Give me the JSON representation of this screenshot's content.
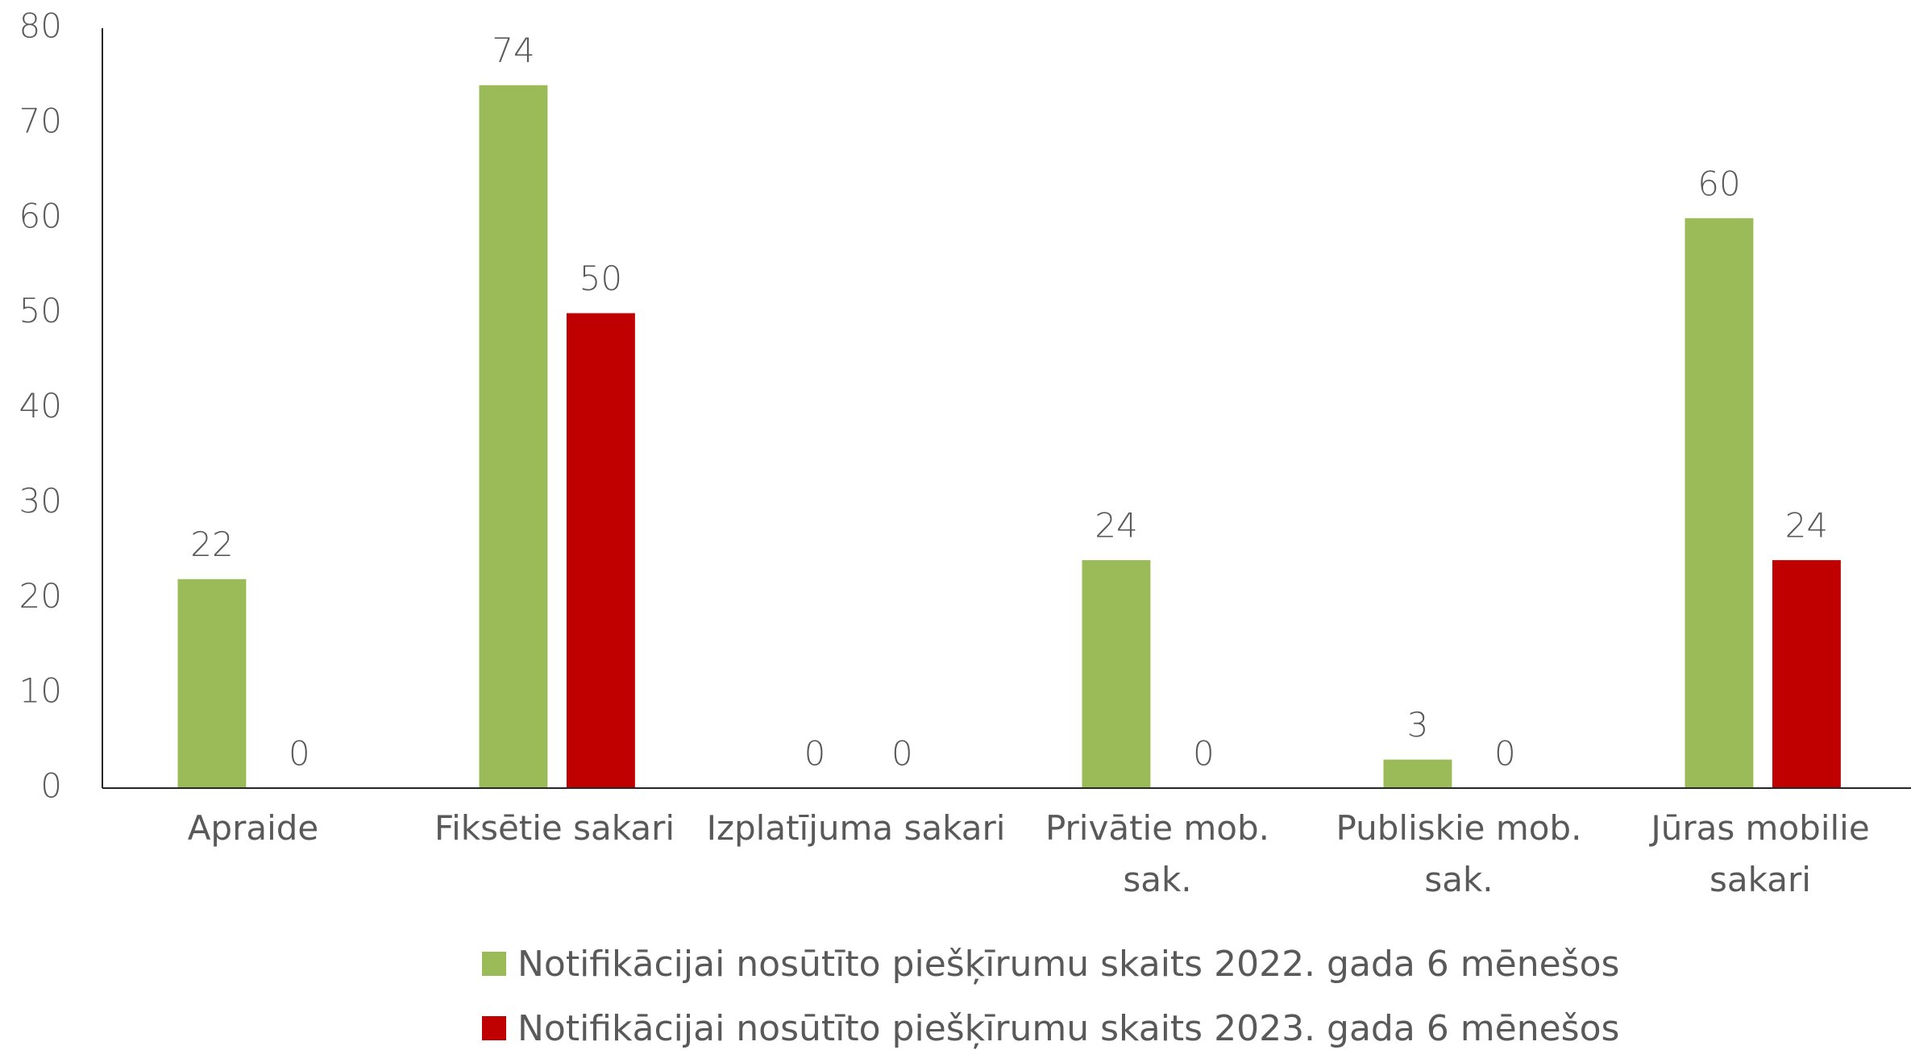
{
  "chart_data": {
    "type": "bar",
    "categories": [
      "Apraide",
      "Fiksētie sakari",
      "Izplatījuma sakari",
      "Privātie mob. sak.",
      "Publiskie mob. sak.",
      "Jūras mobilie sakari"
    ],
    "series": [
      {
        "name": "Notifikācijai nosūtīto piešķīrumu skaits 2022. gada 6 mēnešos",
        "color": "#9bbb59",
        "values": [
          22,
          74,
          0,
          24,
          3,
          60
        ]
      },
      {
        "name": "Notifikācijai nosūtīto piešķīrumu skaits 2023. gada 6 mēnešos",
        "color": "#c00000",
        "values": [
          0,
          50,
          0,
          0,
          0,
          24
        ]
      }
    ],
    "ylim": [
      0,
      80
    ],
    "yticks": [
      0,
      10,
      20,
      30,
      40,
      50,
      60,
      70,
      80
    ],
    "grid": false,
    "legend": "bottom"
  }
}
